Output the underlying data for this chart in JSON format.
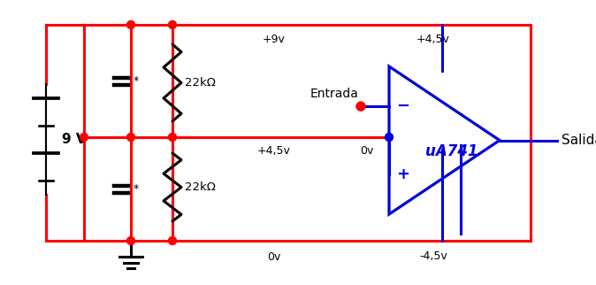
{
  "bg_color": "#ffffff",
  "red": "#ff0000",
  "blue": "#0000dd",
  "black": "#000000",
  "labels": {
    "battery": "9 V",
    "r1": "22kΩ",
    "r2": "22kΩ",
    "v_top": "+9v",
    "v_mid_left": "+4,5v",
    "v_bot": "0v",
    "v_top_right": "+4,5v",
    "v_mid_right": "0v",
    "v_bot_right": "-4,5v",
    "entrada": "Entrada",
    "salida": "Salida",
    "opamp": "uA741"
  },
  "lw": 2.2
}
